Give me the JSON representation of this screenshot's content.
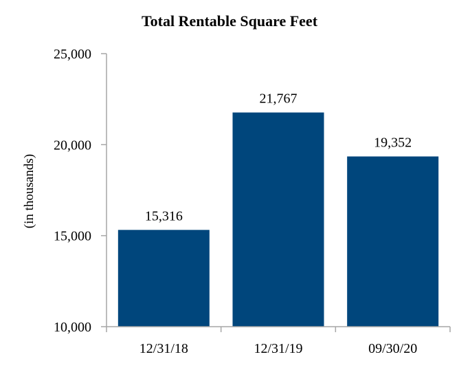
{
  "chart_data": {
    "type": "bar",
    "title": "Total Rentable Square Feet",
    "xlabel": "",
    "ylabel": "(in thousands)",
    "categories": [
      "12/31/18",
      "12/31/19",
      "09/30/20"
    ],
    "values": [
      15316,
      21767,
      19352
    ],
    "data_labels": [
      "15,316",
      "21,767",
      "19,352"
    ],
    "ylim": [
      10000,
      25000
    ],
    "yticks": [
      10000,
      15000,
      20000,
      25000
    ],
    "ytick_labels": [
      "10,000",
      "15,000",
      "20,000",
      "25,000"
    ],
    "grid": false,
    "legend": "none",
    "colors": {
      "bar": "#00467c",
      "axis": "#a6a6a6"
    }
  }
}
